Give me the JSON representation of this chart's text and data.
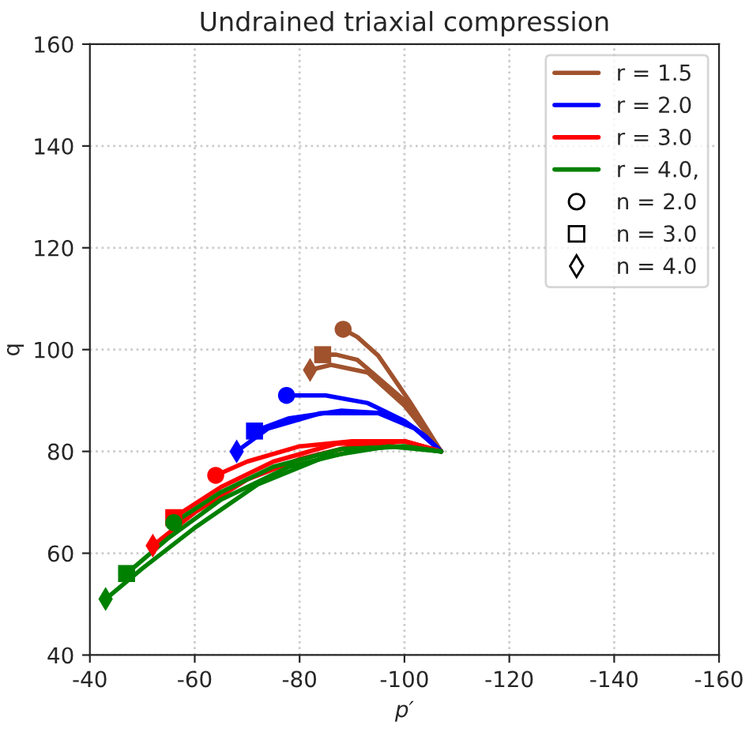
{
  "chart_data": {
    "type": "line",
    "title": "Undrained triaxial compression",
    "xlabel": "p′",
    "ylabel": "q",
    "xlim": [
      -40,
      -160
    ],
    "xticks": [
      -40,
      -60,
      -80,
      -100,
      -120,
      -140,
      -160
    ],
    "ylim": [
      40,
      160
    ],
    "yticks": [
      40,
      60,
      80,
      100,
      120,
      140,
      160
    ],
    "grid": true,
    "legend": "top right",
    "line_style": "solid",
    "series": [
      {
        "name": "r = 1.5",
        "color": "#a0522d",
        "x": [
          -107,
          -101,
          -95,
          -91,
          -88.3
        ],
        "values": [
          80,
          89.8,
          98.8,
          102.5,
          104
        ]
      },
      {
        "color": "#a0522d",
        "x": [
          -107,
          -100,
          -91,
          -87,
          -84.4
        ],
        "values": [
          80,
          90,
          98,
          99,
          99
        ]
      },
      {
        "color": "#a0522d",
        "x": [
          -107,
          -100,
          -93,
          -86,
          -82
        ],
        "values": [
          80,
          89,
          95.5,
          97,
          96
        ]
      },
      {
        "name": "r = 2.0",
        "color": "#0000ff",
        "x": [
          -107,
          -104,
          -100,
          -93,
          -85,
          -77.5
        ],
        "values": [
          80,
          83,
          86,
          89.5,
          91,
          91
        ]
      },
      {
        "color": "#0000ff",
        "x": [
          -107,
          -102,
          -96,
          -88,
          -78,
          -71.4
        ],
        "values": [
          80,
          84.5,
          87.5,
          88,
          86.5,
          84
        ]
      },
      {
        "color": "#0000ff",
        "x": [
          -107,
          -102,
          -95,
          -84,
          -74,
          -68
        ],
        "values": [
          80,
          84.5,
          87.5,
          87.5,
          84.5,
          80
        ]
      },
      {
        "name": "r = 3.0",
        "color": "#ff0000",
        "x": [
          -107,
          -100,
          -90,
          -80,
          -70,
          -64
        ],
        "values": [
          80,
          82,
          82,
          81,
          78,
          75.3
        ]
      },
      {
        "color": "#ff0000",
        "x": [
          -107,
          -100,
          -87,
          -75,
          -65,
          -56
        ],
        "values": [
          80,
          82,
          81.5,
          78,
          73,
          67
        ]
      },
      {
        "color": "#ff0000",
        "x": [
          -107,
          -100,
          -90,
          -80,
          -70,
          -60,
          -52
        ],
        "values": [
          80,
          82,
          81,
          78.5,
          74.5,
          68,
          61.5
        ]
      },
      {
        "name": "r = 4.0,",
        "color": "#008000",
        "x": [
          -107,
          -100,
          -88,
          -75,
          -65,
          -56
        ],
        "values": [
          80,
          81,
          80.5,
          77,
          72,
          66
        ]
      },
      {
        "color": "#008000",
        "x": [
          -107,
          -100,
          -92,
          -78,
          -65,
          -55,
          -47
        ],
        "values": [
          80,
          81,
          80.5,
          77,
          70.5,
          63,
          56
        ]
      },
      {
        "color": "#008000",
        "x": [
          -107,
          -97,
          -85,
          -72,
          -60,
          -50,
          -43
        ],
        "values": [
          80,
          81,
          79,
          73.5,
          65,
          57,
          51
        ]
      },
      {
        "name": "n = 2.0",
        "type": "scatter",
        "marker": "circle",
        "color": "#000000",
        "x": [
          -88.3,
          -77.5,
          -64,
          -56
        ],
        "values": [
          104,
          91,
          75.3,
          66
        ],
        "colors": [
          "#a0522d",
          "#0000ff",
          "#ff0000",
          "#008000"
        ]
      },
      {
        "name": "n = 3.0",
        "type": "scatter",
        "marker": "square",
        "color": "#000000",
        "x": [
          -84.4,
          -71.4,
          -56,
          -47
        ],
        "values": [
          99,
          84,
          67,
          56
        ],
        "colors": [
          "#a0522d",
          "#0000ff",
          "#ff0000",
          "#008000"
        ]
      },
      {
        "name": "n = 4.0",
        "type": "scatter",
        "marker": "diamond",
        "color": "#000000",
        "x": [
          -82,
          -68,
          -52,
          -43
        ],
        "values": [
          96,
          80,
          61.5,
          51
        ],
        "colors": [
          "#a0522d",
          "#0000ff",
          "#ff0000",
          "#008000"
        ]
      }
    ]
  }
}
